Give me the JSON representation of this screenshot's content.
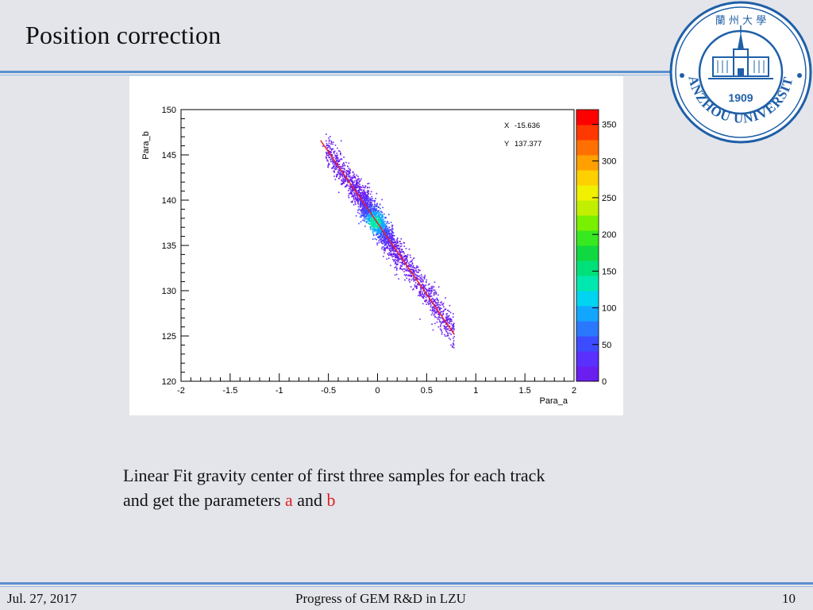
{
  "slide": {
    "title": "Position correction",
    "caption_line1": "Linear Fit gravity center of first three samples for each track",
    "caption_line2_prefix": "and get the parameters ",
    "caption_a": "a",
    "caption_mid": " and ",
    "caption_b": "b",
    "footer_date": "Jul. 27, 2017",
    "footer_title": "Progress of GEM R&D in LZU",
    "page_number": "10"
  },
  "logo": {
    "text": "LANZHOU UNIVERSITY",
    "year": "1909",
    "chinese": "蘭 州 大 學",
    "color": "#1f5fa8"
  },
  "chart_data": {
    "type": "heatmap",
    "xlabel": "Para_a",
    "ylabel": "Para_b",
    "xlim": [
      -2,
      2
    ],
    "ylim": [
      120,
      150
    ],
    "xticks": [
      "-2",
      "-1.5",
      "-1",
      "-0.5",
      "0",
      "0.5",
      "1",
      "1.5",
      "2"
    ],
    "xtick_values": [
      -2,
      -1.5,
      -1,
      -0.5,
      0,
      0.5,
      1,
      1.5,
      2
    ],
    "yticks": [
      "120",
      "125",
      "130",
      "135",
      "140",
      "145",
      "150"
    ],
    "ytick_values": [
      120,
      125,
      130,
      135,
      140,
      145,
      150
    ],
    "zticks": [
      "0",
      "50",
      "100",
      "150",
      "200",
      "250",
      "300",
      "350"
    ],
    "zlim": [
      0,
      370
    ],
    "fit_line": {
      "x": [
        -0.58,
        0.78
      ],
      "y": [
        146.6,
        125.2
      ],
      "color": "#e8202a"
    },
    "core_point": {
      "x": -0.03,
      "y": 137.6
    },
    "stat_labels": [
      {
        "name": "X",
        "value": "-15.636"
      },
      {
        "name": "Y",
        "value": "137.377"
      }
    ],
    "palette": [
      "#6a1ef0",
      "#5a30ff",
      "#3c4cff",
      "#2a78ff",
      "#12a6ff",
      "#00d4f0",
      "#00e8b0",
      "#00e07a",
      "#10d840",
      "#38e820",
      "#78f000",
      "#c0f000",
      "#f0f000",
      "#ffd000",
      "#ffa000",
      "#ff7000",
      "#ff3800",
      "#ff0000"
    ]
  }
}
